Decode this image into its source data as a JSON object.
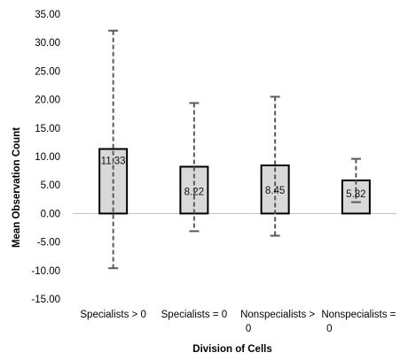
{
  "chart_data": {
    "type": "bar",
    "title": "",
    "xlabel": "Division of Cells",
    "ylabel": "Mean Observation Count",
    "ylim": [
      -15,
      35
    ],
    "yticks": [
      "35.00",
      "30.00",
      "25.00",
      "20.00",
      "15.00",
      "10.00",
      "5.00",
      "0.00",
      "-5.00",
      "-10.00",
      "-15.00"
    ],
    "categories": [
      [
        "Specialists > 0"
      ],
      [
        "Specialists = 0"
      ],
      [
        "Nonspecialists >",
        "0"
      ],
      [
        "Nonspecialists =",
        "0"
      ]
    ],
    "values": [
      11.33,
      8.22,
      8.45,
      5.82
    ],
    "data_labels": [
      "11.33",
      "8.22",
      "8.45",
      "5.82"
    ],
    "error_bars": [
      {
        "low": -9.6,
        "high": 32.1
      },
      {
        "low": -3.1,
        "high": 19.4
      },
      {
        "low": -3.9,
        "high": 20.5
      },
      {
        "low": 2.0,
        "high": 9.6
      }
    ],
    "bar_color": "#d9d9d9",
    "bar_edge_color": "#000000",
    "error_bar_style": "dashed",
    "error_bar_color": "#595959",
    "grid": false,
    "legend": "none"
  }
}
